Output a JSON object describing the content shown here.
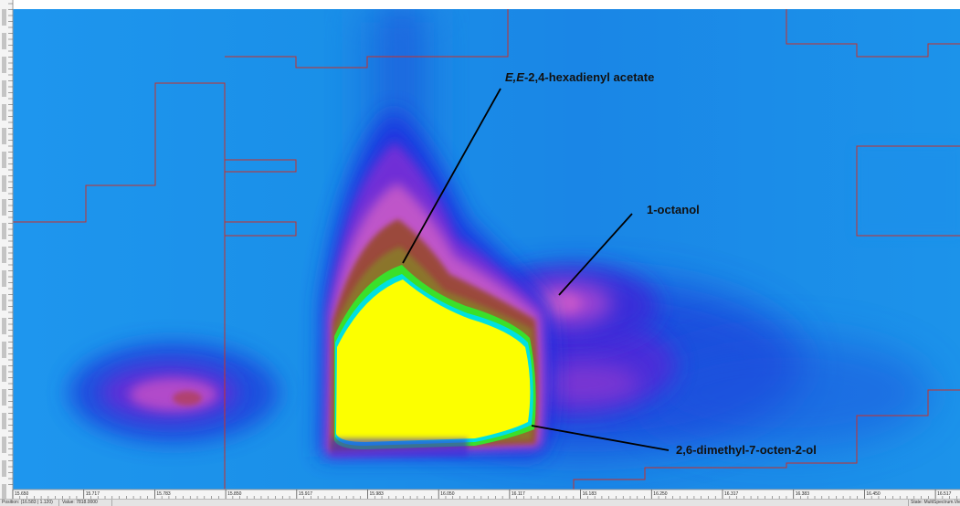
{
  "chart_data": {
    "type": "heatmap",
    "title": "",
    "x_tick_labels": [
      "15.650",
      "15.717",
      "15.783",
      "15.850",
      "15.917",
      "15.983",
      "16.050",
      "16.117",
      "16.183",
      "16.250",
      "16.317",
      "16.383",
      "16.450",
      "16.517"
    ],
    "y_axis": "second-dimension retention (vertical ruler, tick labels unreadable)",
    "color_scale": [
      "#1a8fe8",
      "#1533e0",
      "#3a1fd8",
      "#a63ed0",
      "#e070c8",
      "#b0503a",
      "#8a6a2a",
      "#3adf2a",
      "#00e0e0",
      "#fcff00"
    ],
    "peaks": [
      {
        "compound": "E,E-2,4-hexadienyl acetate",
        "x": 15.987,
        "intensity": "saturated (yellow)"
      },
      {
        "compound": "2,6-dimethyl-7-octen-2-ol",
        "x": 16.03,
        "intensity": "saturated (yellow)"
      },
      {
        "compound": "1-octanol",
        "x": 16.19,
        "intensity": "moderate (magenta)"
      },
      {
        "compound": "unlabeled",
        "x": 15.81,
        "intensity": "low (magenta)"
      }
    ]
  },
  "annotations": {
    "hexadienyl_italic": "E,E",
    "hexadienyl_rest": "-2,4-hexadienyl acetate",
    "octanol": "1-octanol",
    "octenol": "2,6-dimethyl-7-octen-2-ol"
  },
  "status_bar": {
    "position": "Position: (16.583 | 1.120)",
    "value": "Value: 7818.0000",
    "state": "State: MultiSpectrum.Vie"
  },
  "colors": {
    "background_field": "#1a8fe8",
    "saturated_peak": "#fcff00",
    "contour_line": "#cc2222"
  }
}
